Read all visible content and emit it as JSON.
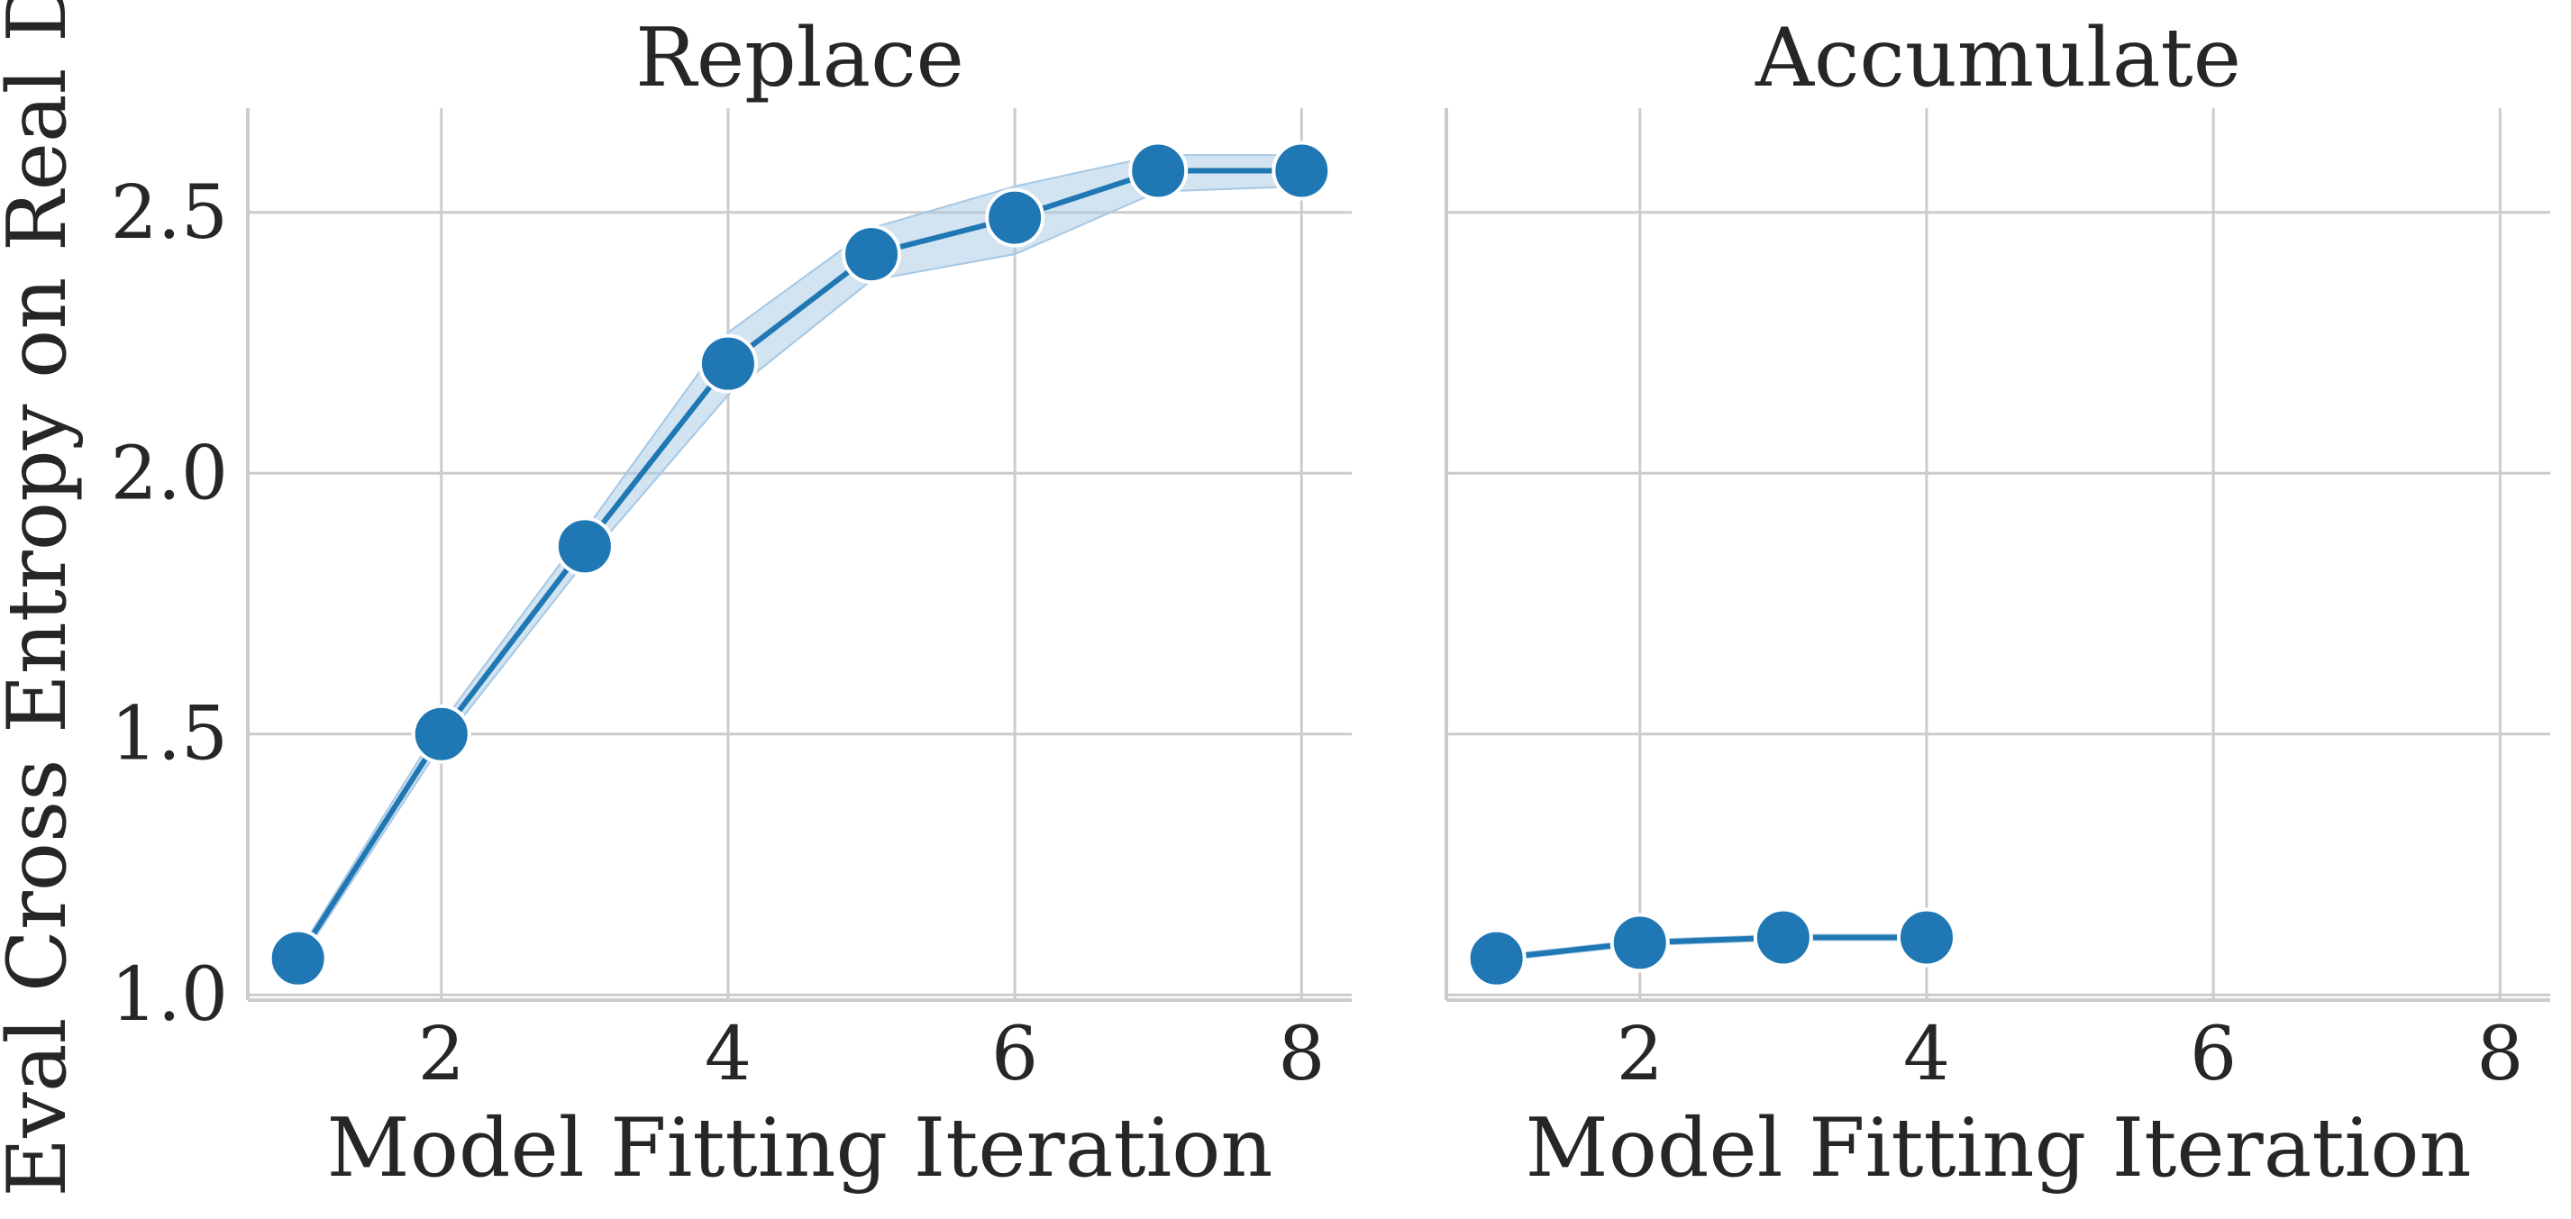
{
  "chart_data": {
    "type": "line",
    "ylabel": "Eval Cross Entropy on Real Data",
    "ylim": [
      0.99,
      2.7
    ],
    "yticks": [
      "1.0",
      "1.5",
      "2.0",
      "2.5"
    ],
    "ytick_values": [
      1.0,
      1.5,
      2.0,
      2.5
    ],
    "xticks": [
      "2",
      "4",
      "6",
      "8"
    ],
    "xtick_values": [
      2,
      4,
      6,
      8
    ],
    "grid": true,
    "colors": {
      "line": "#1f77b4",
      "band": "#a6c8e4",
      "grid": "#cccccc",
      "spine": "#cccccc"
    },
    "panels": [
      {
        "title": "Replace",
        "xlabel": "Model Fitting Iteration",
        "xlim": [
          0.65,
          8.35
        ],
        "x": [
          1,
          2,
          3,
          4,
          5,
          6,
          7,
          8
        ],
        "y": [
          1.07,
          1.5,
          1.86,
          2.21,
          2.42,
          2.49,
          2.58,
          2.58
        ],
        "ci_low": [
          1.06,
          1.48,
          1.83,
          2.15,
          2.37,
          2.42,
          2.54,
          2.55
        ],
        "ci_high": [
          1.08,
          1.52,
          1.89,
          2.27,
          2.47,
          2.55,
          2.61,
          2.61
        ]
      },
      {
        "title": "Accumulate",
        "xlabel": "Model Fitting Iteration",
        "xlim": [
          0.65,
          8.35
        ],
        "x": [
          1,
          2,
          3,
          4
        ],
        "y": [
          1.07,
          1.1,
          1.11,
          1.11
        ],
        "ci_low": [
          1.065,
          1.095,
          1.105,
          1.105
        ],
        "ci_high": [
          1.075,
          1.105,
          1.115,
          1.115
        ]
      }
    ]
  }
}
